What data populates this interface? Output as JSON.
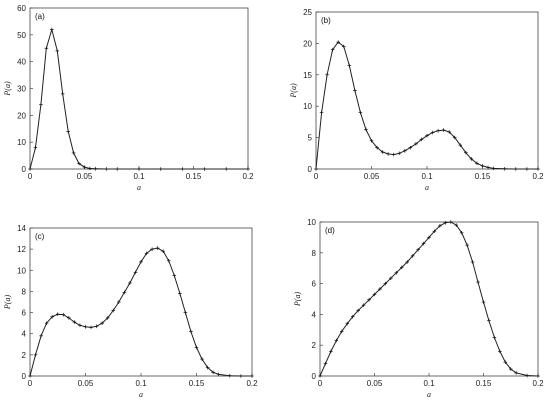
{
  "chart_data": [
    {
      "type": "line",
      "label": "(a)",
      "xlabel": "a",
      "ylabel": "P(a)",
      "xlim": [
        0,
        0.2
      ],
      "ylim": [
        0,
        60
      ],
      "xticks": [
        0,
        0.05,
        0.1,
        0.15,
        0.2
      ],
      "xtick_labels": [
        "0",
        "0.05",
        "0.1",
        "0.15",
        "0.2"
      ],
      "yticks": [
        0,
        10,
        20,
        30,
        40,
        50,
        60
      ],
      "ytick_labels": [
        "0",
        "10",
        "20",
        "30",
        "40",
        "50",
        "60"
      ],
      "grid": false,
      "markers": "plus",
      "x": [
        0,
        0.005,
        0.01,
        0.015,
        0.02,
        0.025,
        0.03,
        0.035,
        0.04,
        0.045,
        0.05,
        0.055,
        0.06,
        0.07,
        0.08,
        0.1,
        0.12,
        0.14,
        0.16,
        0.18,
        0.2
      ],
      "y": [
        0,
        8,
        24,
        45,
        52,
        44,
        28,
        14,
        6,
        2,
        0.7,
        0.2,
        0.1,
        0,
        0,
        0,
        0,
        0,
        0,
        0,
        0
      ]
    },
    {
      "type": "line",
      "label": "(b)",
      "xlabel": "a",
      "ylabel": "P(a)",
      "xlim": [
        0,
        0.2
      ],
      "ylim": [
        0,
        25
      ],
      "xticks": [
        0,
        0.05,
        0.1,
        0.15,
        0.2
      ],
      "xtick_labels": [
        "0",
        "0.05",
        "0.1",
        "0.15",
        "0.2"
      ],
      "yticks": [
        0,
        5,
        10,
        15,
        20,
        25
      ],
      "ytick_labels": [
        "0",
        "5",
        "10",
        "15",
        "20",
        "25"
      ],
      "grid": false,
      "markers": "plus",
      "x": [
        0,
        0.005,
        0.01,
        0.015,
        0.02,
        0.025,
        0.03,
        0.035,
        0.04,
        0.045,
        0.05,
        0.055,
        0.06,
        0.065,
        0.07,
        0.075,
        0.08,
        0.085,
        0.09,
        0.095,
        0.1,
        0.105,
        0.11,
        0.115,
        0.12,
        0.125,
        0.13,
        0.135,
        0.14,
        0.145,
        0.15,
        0.155,
        0.16,
        0.17,
        0.18,
        0.19,
        0.2
      ],
      "y": [
        0,
        9,
        15,
        19,
        20.2,
        19.5,
        16.5,
        12.5,
        9,
        6.3,
        4.5,
        3.4,
        2.7,
        2.4,
        2.3,
        2.5,
        2.9,
        3.4,
        4,
        4.7,
        5.3,
        5.8,
        6.1,
        6.2,
        5.9,
        5,
        3.8,
        2.6,
        1.6,
        0.9,
        0.5,
        0.25,
        0.1,
        0.03,
        0,
        0,
        0
      ]
    },
    {
      "type": "line",
      "label": "(c)",
      "xlabel": "a",
      "ylabel": "P(a)",
      "xlim": [
        0,
        0.2
      ],
      "ylim": [
        0,
        14
      ],
      "xticks": [
        0,
        0.05,
        0.1,
        0.15,
        0.2
      ],
      "xtick_labels": [
        "0",
        "0.05",
        "0.1",
        "0.15",
        "0.2"
      ],
      "yticks": [
        0,
        2,
        4,
        6,
        8,
        10,
        12,
        14
      ],
      "ytick_labels": [
        "0",
        "2",
        "4",
        "6",
        "8",
        "10",
        "12",
        "14"
      ],
      "grid": false,
      "markers": "plus",
      "x": [
        0,
        0.005,
        0.01,
        0.015,
        0.02,
        0.025,
        0.03,
        0.035,
        0.04,
        0.045,
        0.05,
        0.055,
        0.06,
        0.065,
        0.07,
        0.075,
        0.08,
        0.085,
        0.09,
        0.095,
        0.1,
        0.105,
        0.11,
        0.115,
        0.12,
        0.125,
        0.13,
        0.135,
        0.14,
        0.145,
        0.15,
        0.155,
        0.16,
        0.165,
        0.17,
        0.18,
        0.19,
        0.2
      ],
      "y": [
        0,
        2,
        3.8,
        5,
        5.6,
        5.85,
        5.8,
        5.5,
        5.1,
        4.8,
        4.65,
        4.6,
        4.7,
        5,
        5.5,
        6.2,
        7,
        7.9,
        8.8,
        9.8,
        10.8,
        11.6,
        12,
        12.1,
        11.8,
        10.9,
        9.5,
        7.8,
        6,
        4.2,
        2.7,
        1.6,
        0.8,
        0.35,
        0.15,
        0.03,
        0,
        0
      ]
    },
    {
      "type": "line",
      "label": "(d)",
      "xlabel": "a",
      "ylabel": "P(a)",
      "xlim": [
        0,
        0.2
      ],
      "ylim": [
        0,
        10
      ],
      "xticks": [
        0,
        0.05,
        0.1,
        0.15,
        0.2
      ],
      "xtick_labels": [
        "0",
        "0.05",
        "0.1",
        "0.15",
        "0.2"
      ],
      "yticks": [
        0,
        2,
        4,
        6,
        8,
        10
      ],
      "ytick_labels": [
        "0",
        "2",
        "4",
        "6",
        "8",
        "10"
      ],
      "grid": false,
      "markers": "plus",
      "x": [
        0,
        0.005,
        0.01,
        0.015,
        0.02,
        0.025,
        0.03,
        0.035,
        0.04,
        0.045,
        0.05,
        0.055,
        0.06,
        0.065,
        0.07,
        0.075,
        0.08,
        0.085,
        0.09,
        0.095,
        0.1,
        0.105,
        0.11,
        0.115,
        0.12,
        0.125,
        0.13,
        0.135,
        0.14,
        0.145,
        0.15,
        0.155,
        0.16,
        0.165,
        0.17,
        0.175,
        0.18,
        0.19,
        0.2
      ],
      "y": [
        0,
        0.8,
        1.6,
        2.3,
        2.9,
        3.4,
        3.85,
        4.25,
        4.6,
        4.95,
        5.3,
        5.65,
        6,
        6.35,
        6.7,
        7.05,
        7.4,
        7.8,
        8.2,
        8.6,
        9,
        9.4,
        9.75,
        9.95,
        10,
        9.8,
        9.3,
        8.5,
        7.4,
        6.1,
        4.8,
        3.6,
        2.5,
        1.6,
        0.9,
        0.45,
        0.2,
        0.03,
        0
      ]
    }
  ]
}
